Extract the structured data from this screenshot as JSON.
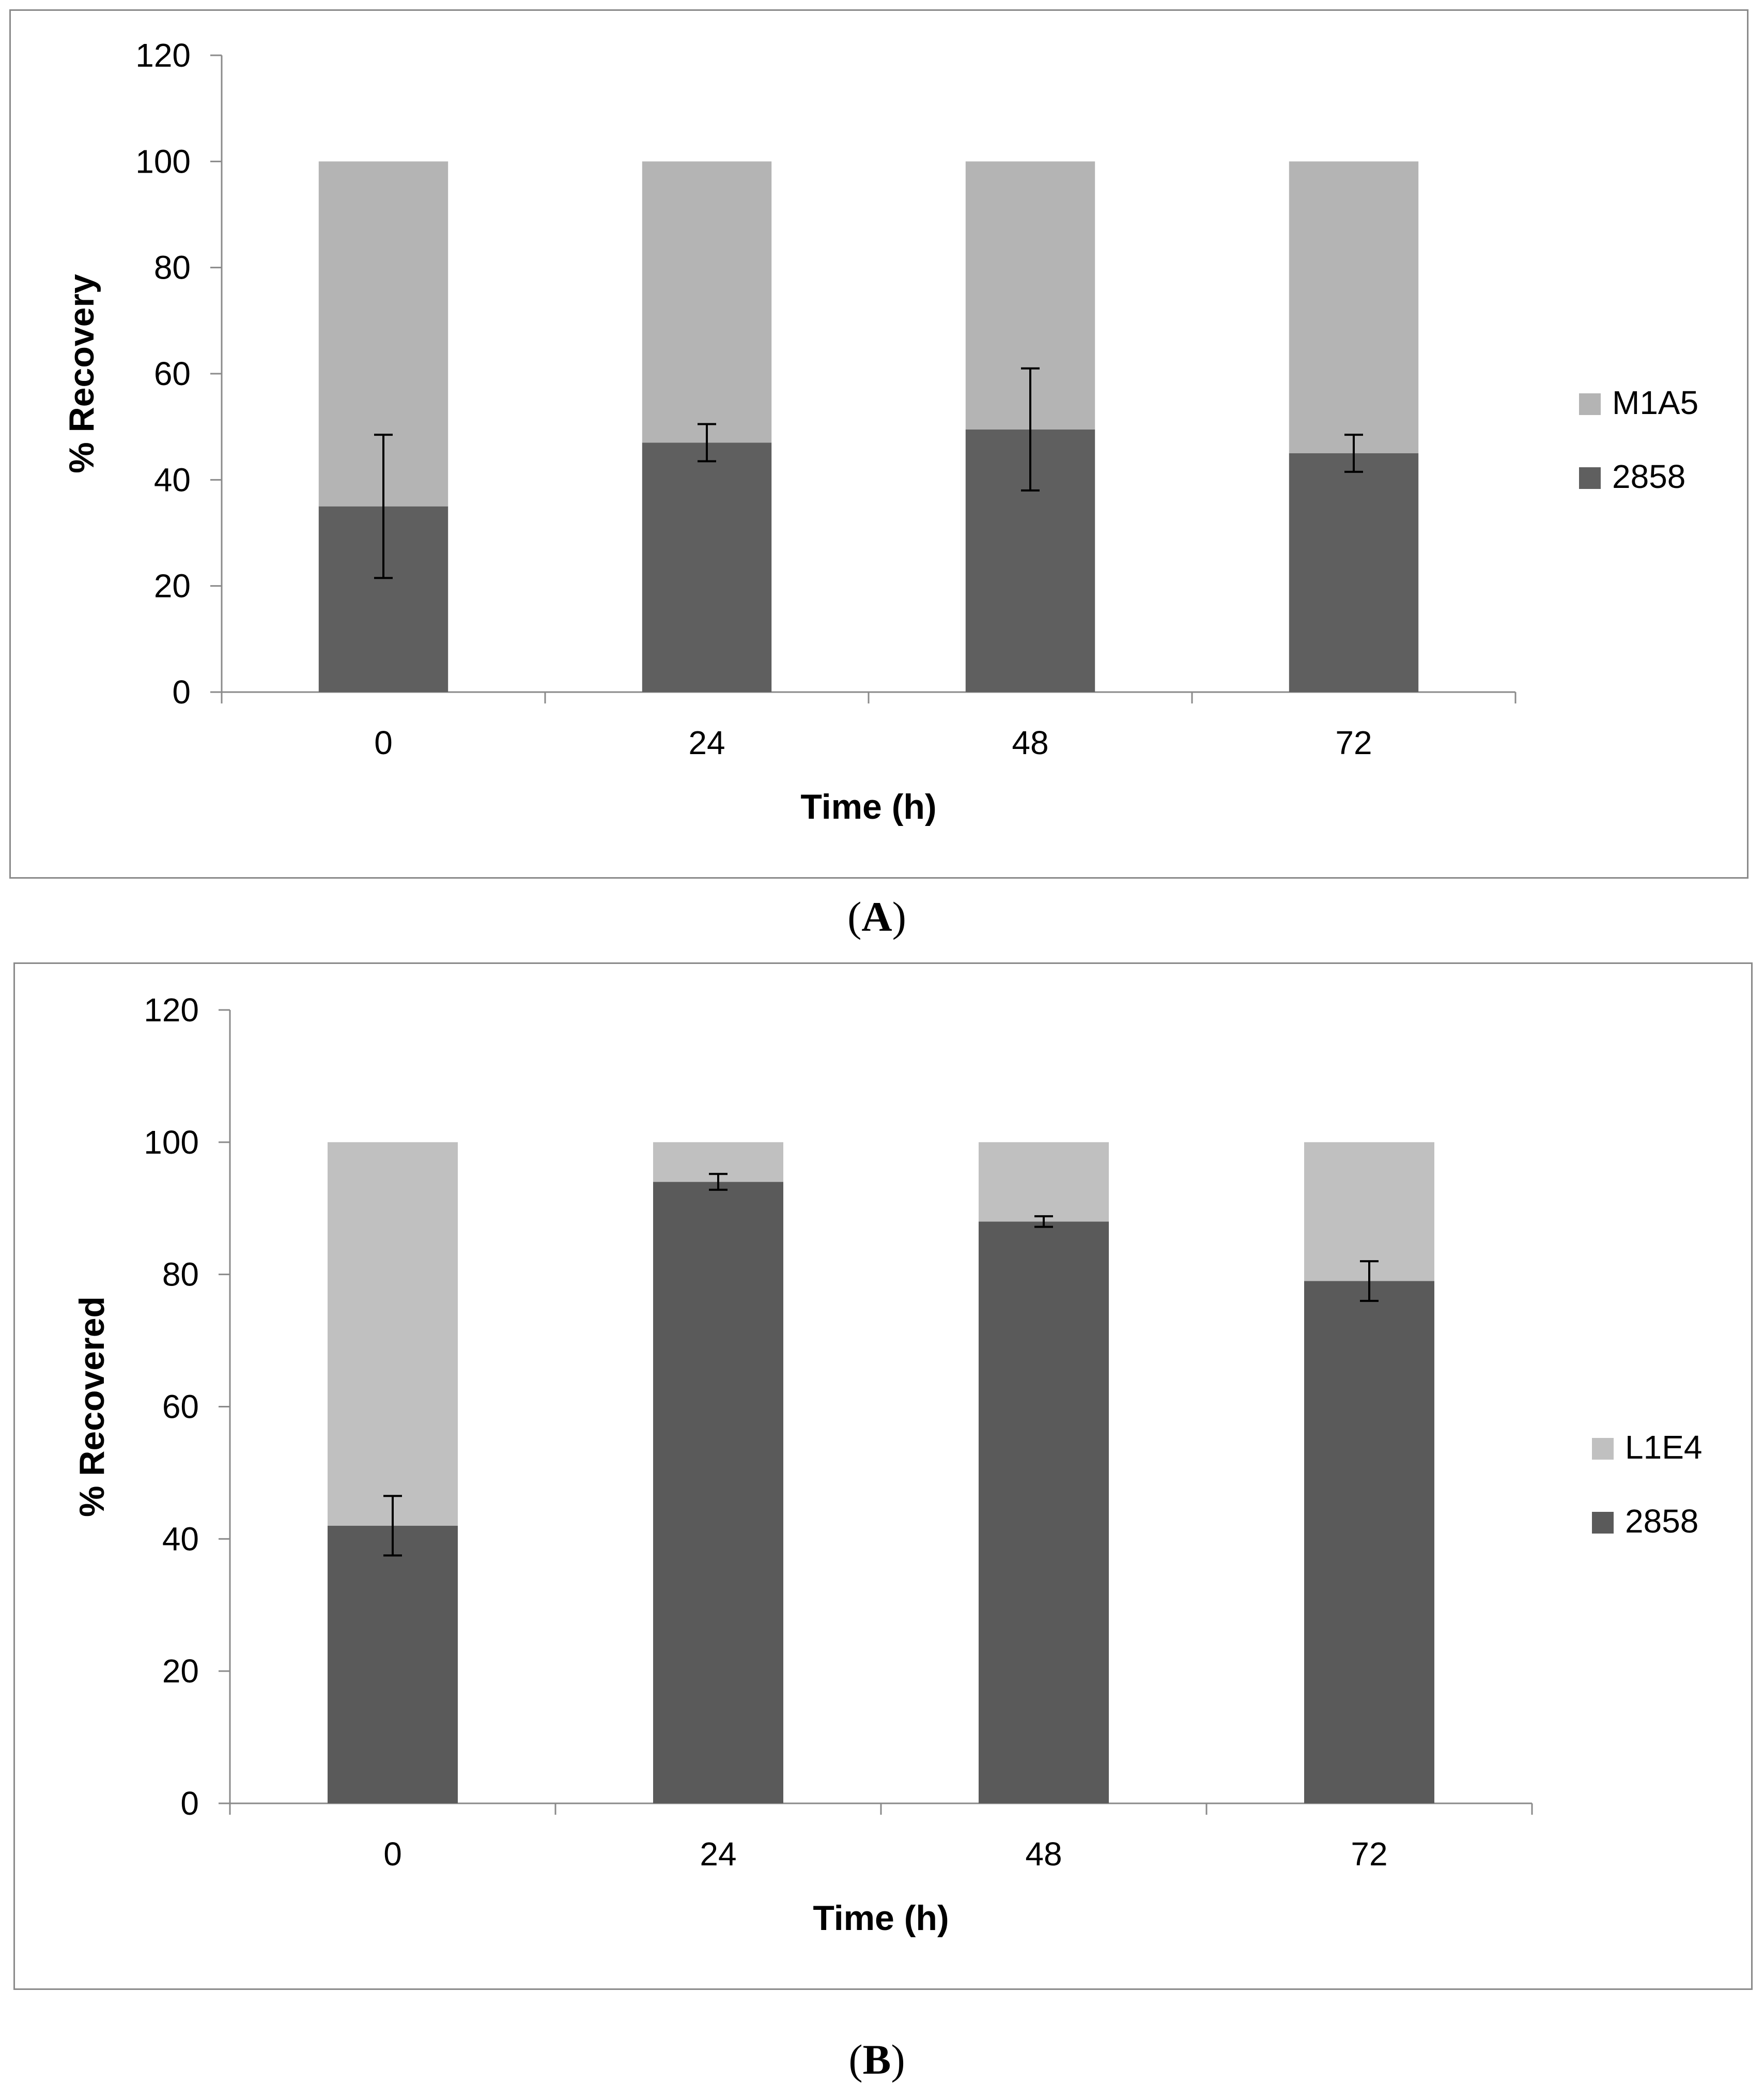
{
  "colors": {
    "dark": "#5f5f5f",
    "light_a": "#b4b4b4",
    "light_b": "#c0c0c0",
    "axis": "#8a8a8a",
    "text": "#000000"
  },
  "captions": {
    "a_letter": "A",
    "b_letter": "B",
    "open": "(",
    "close": ")"
  },
  "chart_data": [
    {
      "type": "bar",
      "stacked": true,
      "title": "",
      "xlabel": "Time (h)",
      "ylabel": "% Recovery",
      "ylim": [
        0,
        120
      ],
      "yticks": [
        "0",
        "20",
        "40",
        "60",
        "80",
        "100",
        "120"
      ],
      "categories": [
        "0",
        "24",
        "48",
        "72"
      ],
      "series": [
        {
          "name": "2858",
          "color": "#5f5f5f",
          "values": [
            35,
            47,
            49.5,
            45
          ],
          "error": [
            13.5,
            3.5,
            11.5,
            3.5
          ]
        },
        {
          "name": "M1A5",
          "color": "#b4b4b4",
          "values": [
            65,
            53,
            50.5,
            55
          ]
        }
      ],
      "legend": [
        "M1A5",
        "2858"
      ],
      "legend_position": "right",
      "grid": false
    },
    {
      "type": "bar",
      "stacked": true,
      "title": "",
      "xlabel": "Time (h)",
      "ylabel": "% Recovered",
      "ylim": [
        0,
        120
      ],
      "yticks": [
        "0",
        "20",
        "40",
        "60",
        "80",
        "100",
        "120"
      ],
      "categories": [
        "0",
        "24",
        "48",
        "72"
      ],
      "series": [
        {
          "name": "2858",
          "color": "#5a5a5a",
          "values": [
            42,
            94,
            88,
            79
          ],
          "error": [
            4.5,
            1.2,
            0.8,
            3
          ]
        },
        {
          "name": "L1E4",
          "color": "#c0c0c0",
          "values": [
            58,
            6,
            12,
            21
          ]
        }
      ],
      "legend": [
        "L1E4",
        "2858"
      ],
      "legend_position": "right",
      "grid": false
    }
  ]
}
